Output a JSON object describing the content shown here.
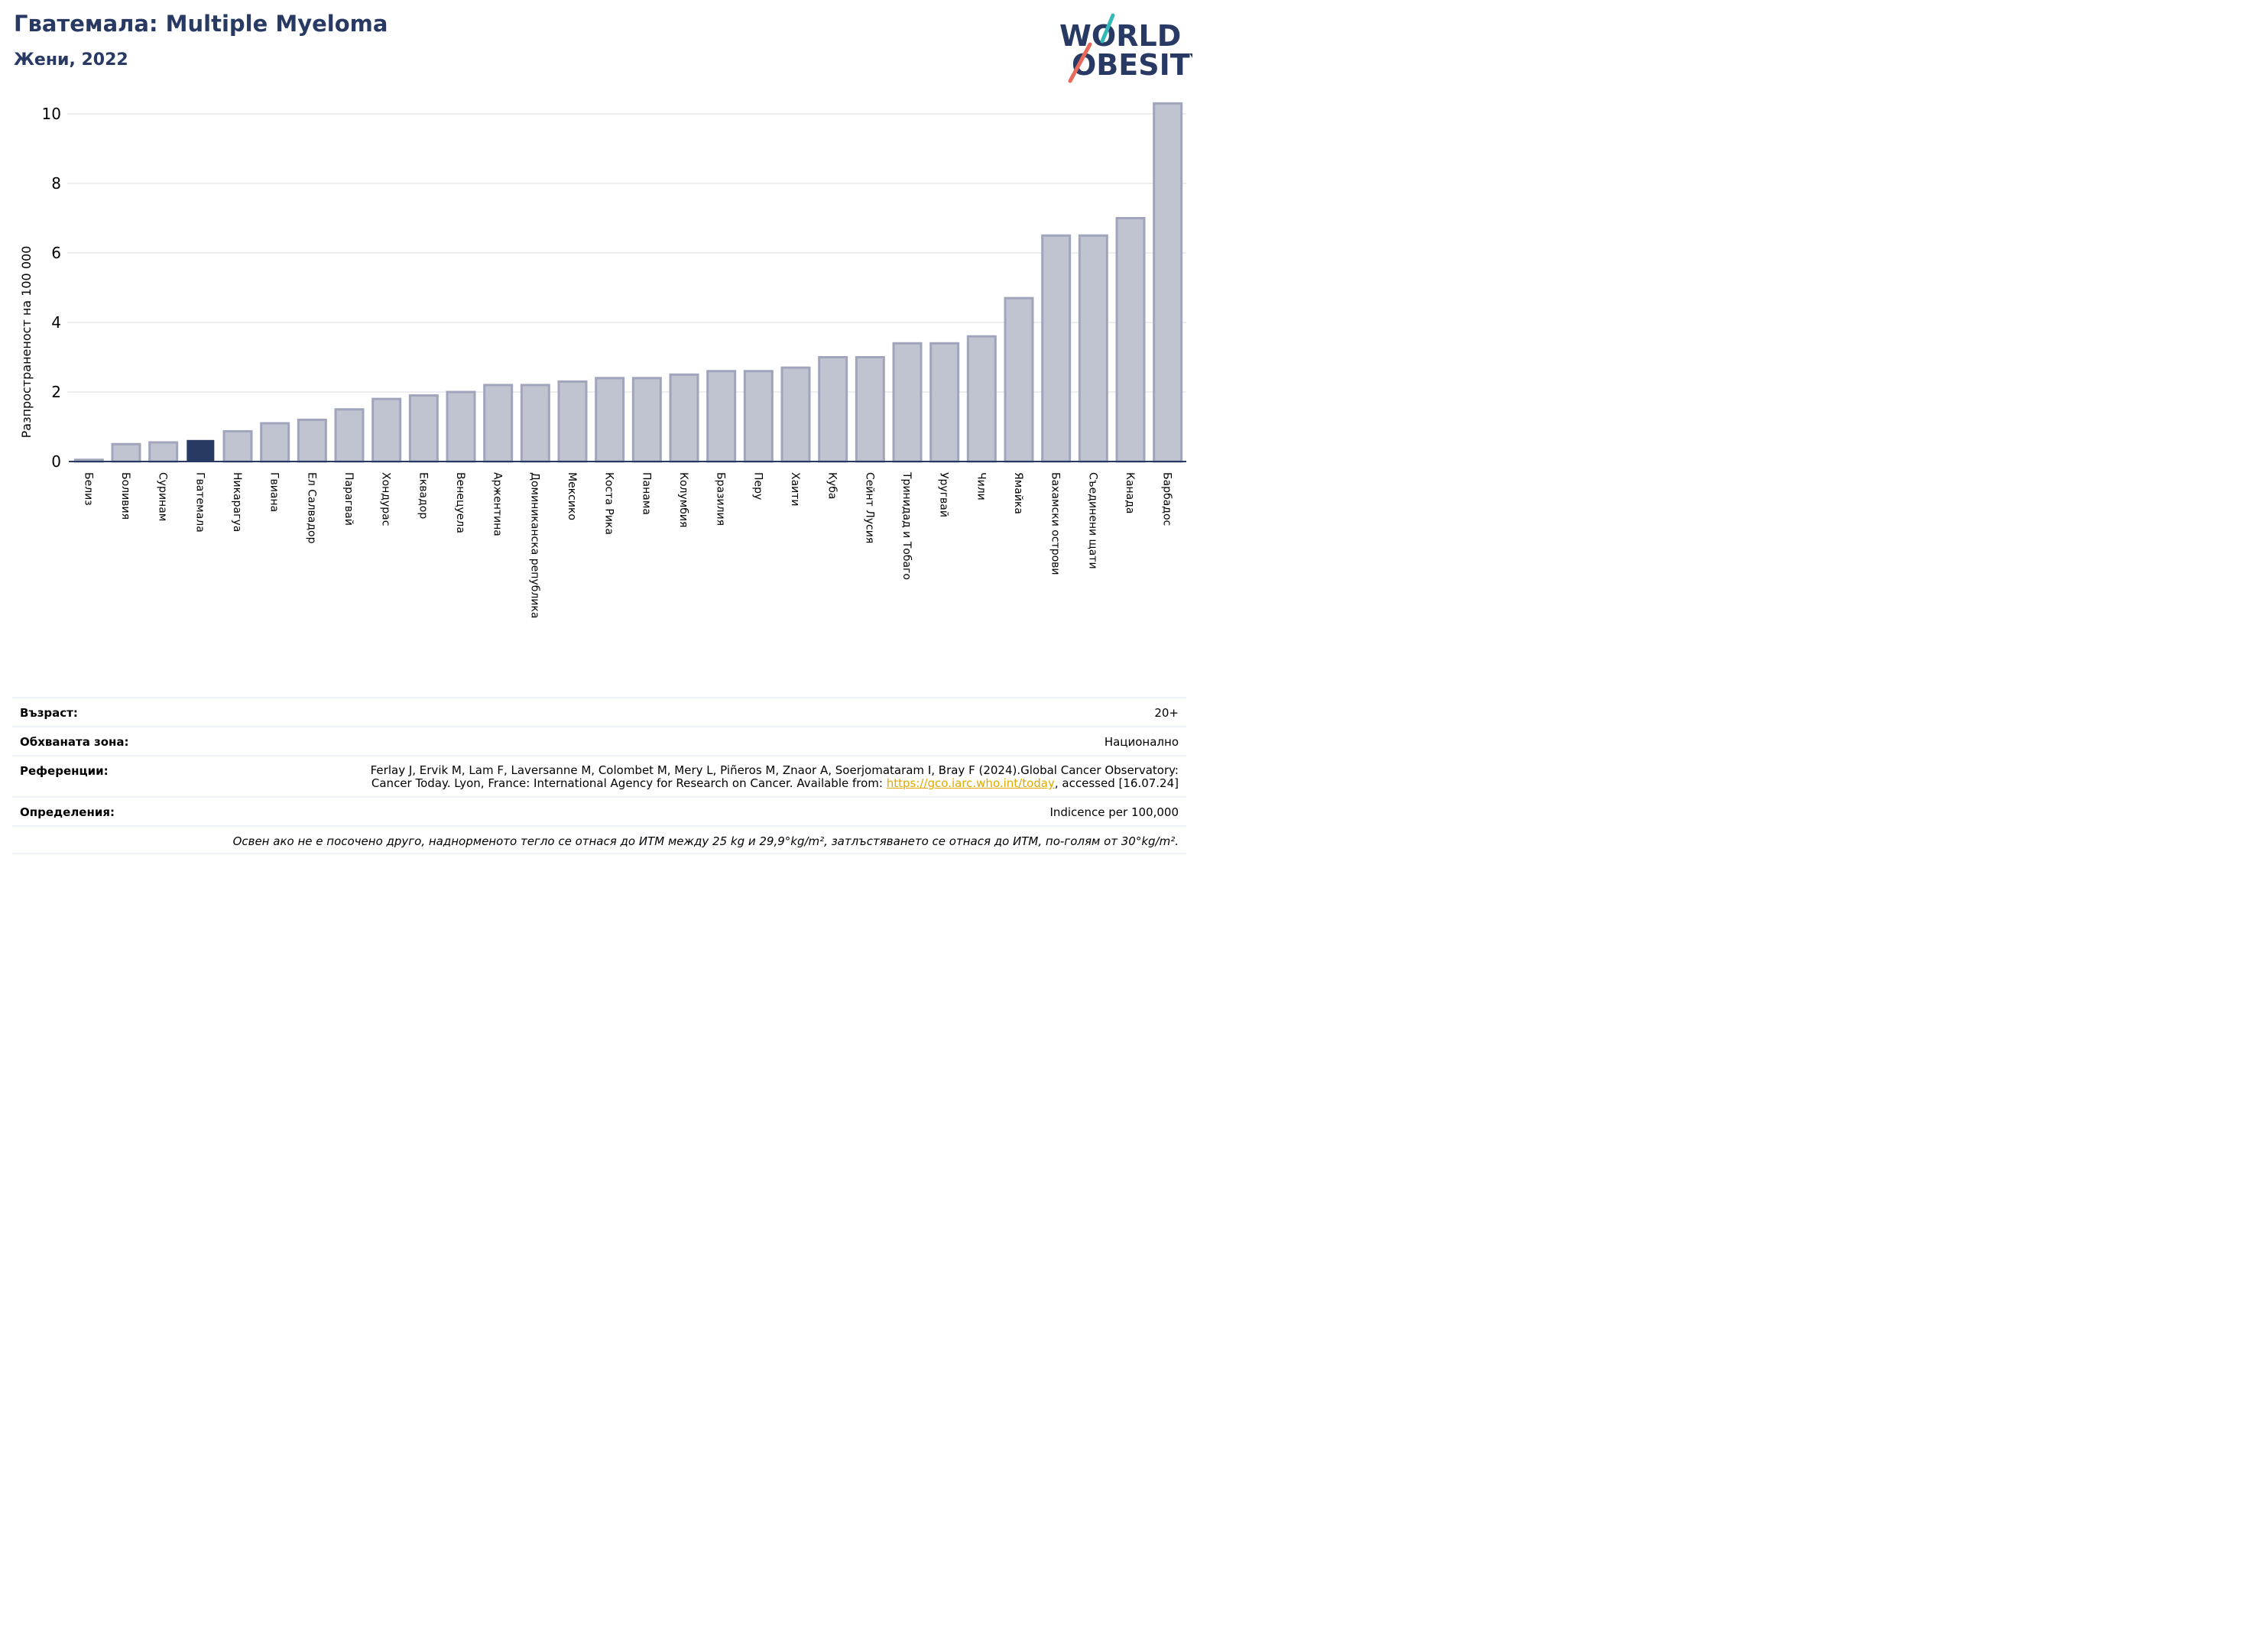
{
  "header": {
    "title": "Гватемала: Multiple Myeloma",
    "subtitle": "Жени, 2022"
  },
  "logo": {
    "line1": "WORLD",
    "line2": "OBESITY"
  },
  "colors": {
    "title": "#283a63",
    "bar_fill": "#c0c3d0",
    "bar_stroke": "#a0a5bb",
    "highlight": "#283a63",
    "grid": "#e6e9ee",
    "link": "#e1a900",
    "logo_teal": "#36b8b8",
    "logo_coral": "#e9695a"
  },
  "chart_data": {
    "type": "bar",
    "ylabel": "Разпространеност  на 100 000",
    "ylim": [
      0,
      10.4
    ],
    "yticks": [
      0,
      2,
      4,
      6,
      8,
      10
    ],
    "grid": true,
    "highlight_category": "Гватемала",
    "categories": [
      "Белиз",
      "Боливия",
      "Суринам",
      "Гватемала",
      "Никарагуа",
      "Гвиана",
      "Ел Салвадор",
      "Парагвай",
      "Хондурас",
      "Еквадор",
      "Венецуела",
      "Аржентина",
      "Доминиканска република",
      "Мексико",
      "Коста Рика",
      "Панама",
      "Колумбия",
      "Бразилия",
      "Перу",
      "Хаити",
      "Куба",
      "Сейнт Лусия",
      "Тринидад и Тобаго",
      "Уругвай",
      "Чили",
      "Ямайка",
      "Бахамски острови",
      "Съединени щати",
      "Канада",
      "Барбадос"
    ],
    "values": [
      0.05,
      0.5,
      0.55,
      0.62,
      0.87,
      1.1,
      1.2,
      1.5,
      1.8,
      1.9,
      2.0,
      2.2,
      2.2,
      2.3,
      2.4,
      2.4,
      2.5,
      2.6,
      2.6,
      2.7,
      3.0,
      3.0,
      3.4,
      3.4,
      3.6,
      4.7,
      6.5,
      6.5,
      7.0,
      10.3
    ]
  },
  "info": {
    "age_label": "Възраст:",
    "age_value": "20+",
    "coverage_label": "Обхваната зона:",
    "coverage_value": "Национално",
    "refs_label": "Референции:",
    "refs_line1": "Ferlay J, Ervik M, Lam F, Laversanne M, Colombet M, Mery L, Piñeros M, Znaor A, Soerjomataram I, Bray F (2024).Global Cancer Observatory:",
    "refs_line2_prefix": "Cancer Today. Lyon, France: International Agency for Research on Cancer. Available from: ",
    "refs_link": "https://gco.iarc.who.int/today",
    "refs_line2_suffix": ", accessed [16.07.24]",
    "definitions_label": "Определения:",
    "definitions_value": "Indicence per 100,000",
    "footnote": "Освен ако не е посочено друго, наднорменото тегло се отнася до ИТМ между 25 kg и 29,9°kg/m², затлъстяването се отнася до ИТМ, по-голям от 30°kg/m²."
  }
}
